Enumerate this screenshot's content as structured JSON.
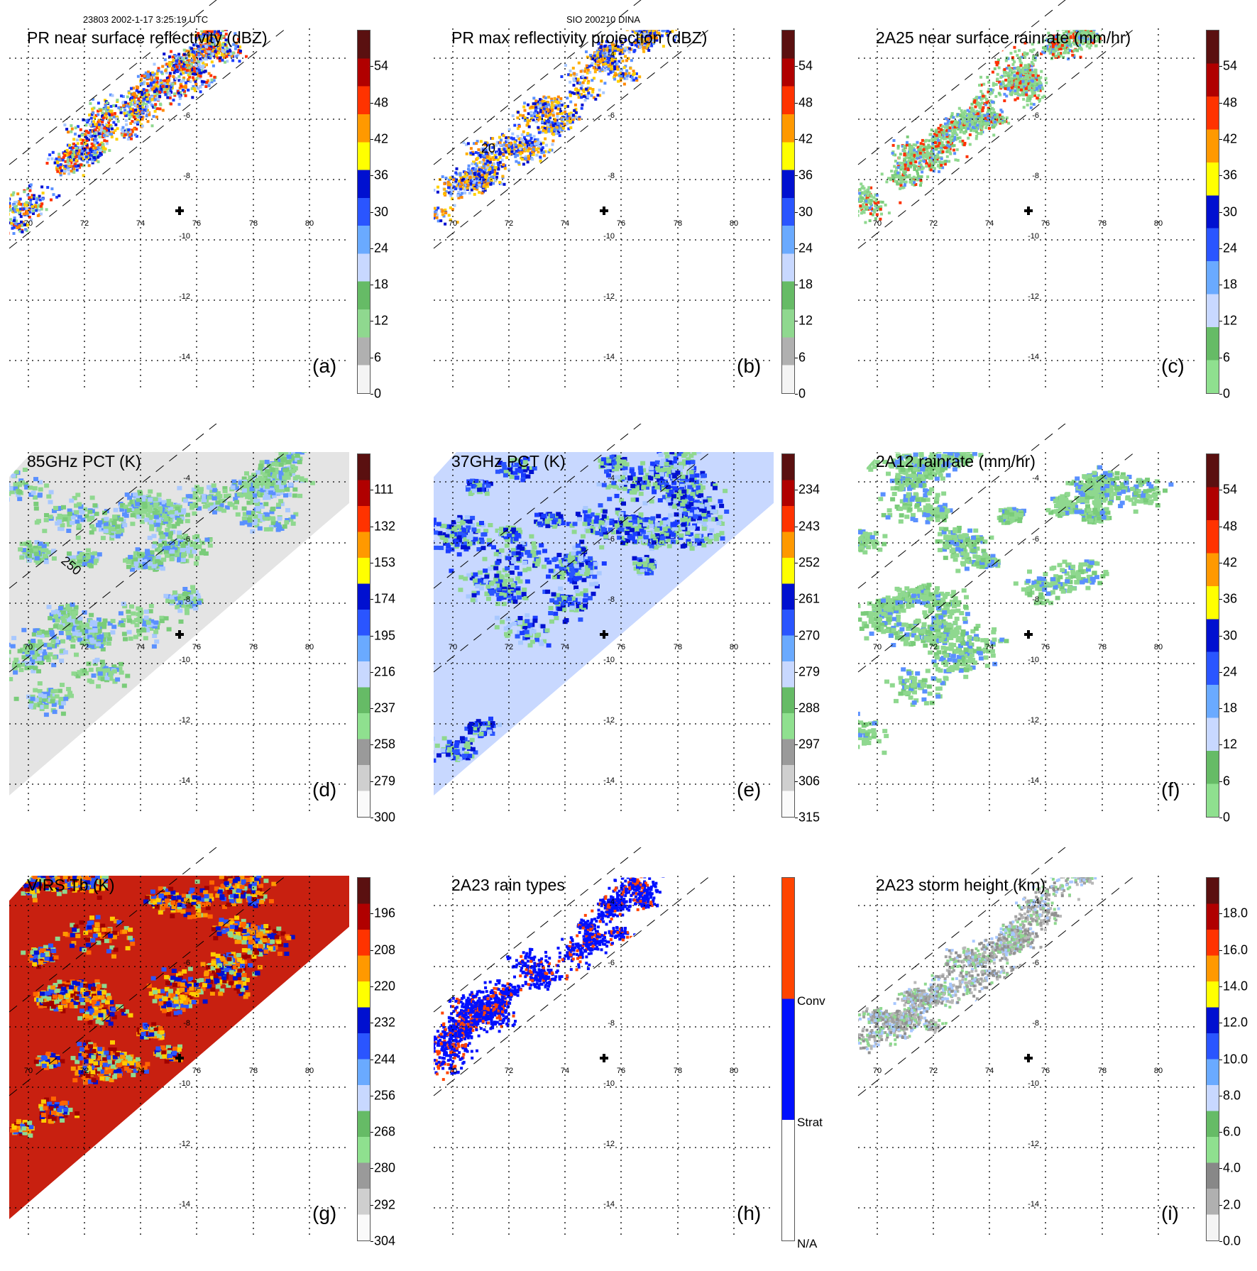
{
  "header": {
    "orbit_time": "23803 2002-1-17 3:25:19 UTC",
    "storm": "SIO 200210 DINA"
  },
  "axes": {
    "lon_labels": [
      "70",
      "72",
      "74",
      "76",
      "78",
      "80"
    ],
    "lat_labels": [
      "-4",
      "-6",
      "-8",
      "-10",
      "-12",
      "-14"
    ]
  },
  "panels": [
    {
      "letter": "(a)",
      "title": "PR near surface reflectivity (dBZ)",
      "type": "pr",
      "ticks": [
        "0",
        "6",
        "12",
        "18",
        "24",
        "30",
        "36",
        "42",
        "48",
        "54"
      ],
      "cmap": [
        "#f4f4f4",
        "#b0b0b0",
        "#8fd88f",
        "#66bb66",
        "#c8d8ff",
        "#6aaaff",
        "#2a55ff",
        "#0010d0",
        "#ffff00",
        "#ff9900",
        "#ff3300",
        "#b00000",
        "#5a1010"
      ],
      "palette": [
        "#8fd88f",
        "#a8c8ff",
        "#5a90ff",
        "#1a3cff",
        "#0010d0",
        "#ffd000",
        "#ff8800",
        "#ff3000"
      ]
    },
    {
      "letter": "(b)",
      "title": "PR max reflectivity projection (dBZ)",
      "type": "pr",
      "contour_label": "20",
      "ticks": [
        "0",
        "6",
        "12",
        "18",
        "24",
        "30",
        "36",
        "42",
        "48",
        "54"
      ],
      "cmap": [
        "#f4f4f4",
        "#b0b0b0",
        "#8fd88f",
        "#66bb66",
        "#c8d8ff",
        "#6aaaff",
        "#2a55ff",
        "#0010d0",
        "#ffff00",
        "#ff9900",
        "#ff3300",
        "#b00000",
        "#5a1010"
      ],
      "palette": [
        "#5a90ff",
        "#1a3cff",
        "#0010d0",
        "#ffd000",
        "#ffb000",
        "#ff8800",
        "#a8c8ff"
      ]
    },
    {
      "letter": "(c)",
      "title": "2A25 near surface rainrate (mm/hr)",
      "type": "pr",
      "ticks": [
        "0",
        "6",
        "12",
        "18",
        "24",
        "30",
        "36",
        "42",
        "48",
        "54"
      ],
      "cmap": [
        "#8fe08f",
        "#66bb66",
        "#c8d8ff",
        "#6aaaff",
        "#2a55ff",
        "#0010d0",
        "#ffff00",
        "#ff9900",
        "#ff3300",
        "#b00000",
        "#5a1010"
      ],
      "palette": [
        "#8fd88f",
        "#8fd88f",
        "#8fd88f",
        "#7acc7a",
        "#5a90ff",
        "#ff3000"
      ]
    },
    {
      "letter": "(d)",
      "title": "85GHz PCT (K)",
      "type": "tmi",
      "contour_label": "250",
      "ticks": [
        "300",
        "279",
        "258",
        "237",
        "216",
        "195",
        "174",
        "153",
        "132",
        "111"
      ],
      "cmap": [
        "#fafafa",
        "#cfcfcf",
        "#9a9a9a",
        "#8fe08f",
        "#66bb66",
        "#c8d8ff",
        "#6aaaff",
        "#2a55ff",
        "#0010d0",
        "#ffff00",
        "#ff9900",
        "#ff3300",
        "#b00000",
        "#5a1010"
      ],
      "background": "#e4e4e4",
      "palette": [
        "#8fd88f",
        "#8fd88f",
        "#7acc7a",
        "#a8c8ff",
        "#5a90ff"
      ]
    },
    {
      "letter": "(e)",
      "title": "37GHz PCT (K)",
      "type": "tmi",
      "ticks": [
        "315",
        "306",
        "297",
        "288",
        "279",
        "270",
        "261",
        "252",
        "243",
        "234"
      ],
      "cmap": [
        "#fafafa",
        "#cfcfcf",
        "#9a9a9a",
        "#8fe08f",
        "#66bb66",
        "#c8d8ff",
        "#6aaaff",
        "#2a55ff",
        "#0010d0",
        "#ffff00",
        "#ff9900",
        "#ff3300",
        "#b00000",
        "#5a1010"
      ],
      "background": "#c8d8ff",
      "palette": [
        "#8fd88f",
        "#8fd88f",
        "#2a55ff",
        "#0010d0",
        "#1a3cff",
        "#a8c8ff"
      ]
    },
    {
      "letter": "(f)",
      "title": "2A12 rainrate (mm/hr)",
      "type": "tmi",
      "ticks": [
        "0",
        "6",
        "12",
        "18",
        "24",
        "30",
        "36",
        "42",
        "48",
        "54"
      ],
      "cmap": [
        "#8fe08f",
        "#66bb66",
        "#c8d8ff",
        "#6aaaff",
        "#2a55ff",
        "#0010d0",
        "#ffff00",
        "#ff9900",
        "#ff3300",
        "#b00000",
        "#5a1010"
      ],
      "background": "#ffffff",
      "palette": [
        "#8fd88f",
        "#8fd88f",
        "#8fd88f",
        "#7acc7a",
        "#5a90ff"
      ]
    },
    {
      "letter": "(g)",
      "title": "VIRS Tb (K)",
      "type": "virs",
      "ticks": [
        "304",
        "292",
        "280",
        "268",
        "256",
        "244",
        "232",
        "220",
        "208",
        "196"
      ],
      "cmap": [
        "#fafafa",
        "#cfcfcf",
        "#9a9a9a",
        "#8fe08f",
        "#66bb66",
        "#c8d8ff",
        "#6aaaff",
        "#2a55ff",
        "#0010d0",
        "#ffff00",
        "#ff9900",
        "#ff3300",
        "#b00000",
        "#5a1010"
      ],
      "background": "#c82010",
      "palette": [
        "#ff9900",
        "#ffcc00",
        "#ff6600",
        "#2a55ff",
        "#0010d0",
        "#8fd88f",
        "#a00000"
      ]
    },
    {
      "letter": "(h)",
      "title": "2A23 rain types",
      "type": "pr",
      "categorical": true,
      "categories": [
        "N/A",
        "Strat",
        "Conv"
      ],
      "cmap": [
        "#ffffff",
        "#0010ff",
        "#ff4400"
      ],
      "palette": [
        "#0010ff",
        "#0010ff",
        "#0010ff",
        "#0010ff",
        "#ff4400"
      ]
    },
    {
      "letter": "(i)",
      "title": "2A23 storm height (km)",
      "type": "pr",
      "ticks": [
        "0.0",
        "2.0",
        "4.0",
        "6.0",
        "8.0",
        "10.0",
        "12.0",
        "14.0",
        "16.0",
        "18.0"
      ],
      "cmap": [
        "#f4f4f4",
        "#b0b0b0",
        "#888888",
        "#8fe08f",
        "#66bb66",
        "#c8d8ff",
        "#6aaaff",
        "#2a55ff",
        "#0010d0",
        "#ffff00",
        "#ff9900",
        "#ff3300",
        "#b00000",
        "#5a1010"
      ],
      "palette": [
        "#a0a0a0",
        "#8fd88f",
        "#909090",
        "#a8c8ff",
        "#b8b8b8"
      ]
    }
  ]
}
